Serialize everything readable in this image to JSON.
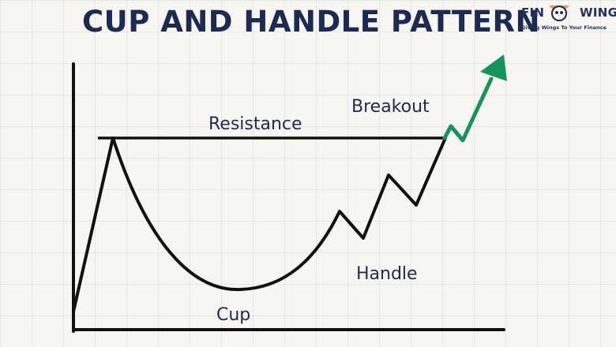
{
  "title": "CUP AND HANDLE PATTERN",
  "logo": {
    "name_left": "FIN",
    "name_right": "WINGS",
    "tagline": "Giving Wings To Your Finance",
    "icon": "owl-wings-emblem"
  },
  "labels": {
    "resistance": "Resistance",
    "breakout": "Breakout",
    "handle": "Handle",
    "cup": "Cup"
  },
  "colors": {
    "title": "#1c2b52",
    "line": "#111111",
    "breakout_arrow": "#16955a"
  }
}
